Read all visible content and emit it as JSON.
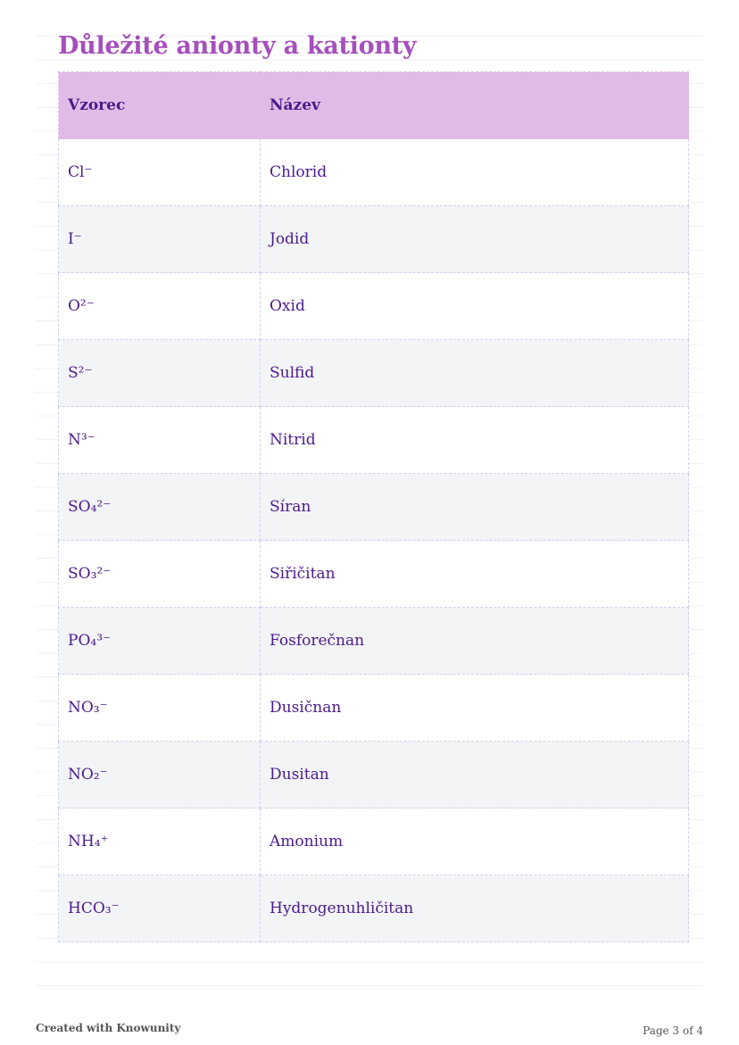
{
  "title": "Důležité anionty a kationty",
  "table": {
    "headers": [
      "Vzorec",
      "Název"
    ],
    "rows": [
      {
        "formula": "Cl⁻",
        "name": "Chlorid"
      },
      {
        "formula": "I⁻",
        "name": "Jodid"
      },
      {
        "formula": "O²⁻",
        "name": "Oxid"
      },
      {
        "formula": "S²⁻",
        "name": "Sulfid"
      },
      {
        "formula": "N³⁻",
        "name": "Nitrid"
      },
      {
        "formula": "SO₄²⁻",
        "name": "Síran"
      },
      {
        "formula": "SO₃²⁻",
        "name": "Siřičitan"
      },
      {
        "formula": "PO₄³⁻",
        "name": "Fosforečnan"
      },
      {
        "formula": "NO₃⁻",
        "name": "Dusičnan"
      },
      {
        "formula": "NO₂⁻",
        "name": "Dusitan"
      },
      {
        "formula": "NH₄⁺",
        "name": "Amonium"
      },
      {
        "formula": "HCO₃⁻",
        "name": "Hydrogenuhličitan"
      }
    ]
  },
  "footer": {
    "left": "Created with Knowunity",
    "right": "Page 3 of 4"
  },
  "colors": {
    "title": "#a64fbd",
    "header_bg": "#e0bbe6",
    "text": "#4b1a8a",
    "alt_row": "#f3f4f6"
  }
}
